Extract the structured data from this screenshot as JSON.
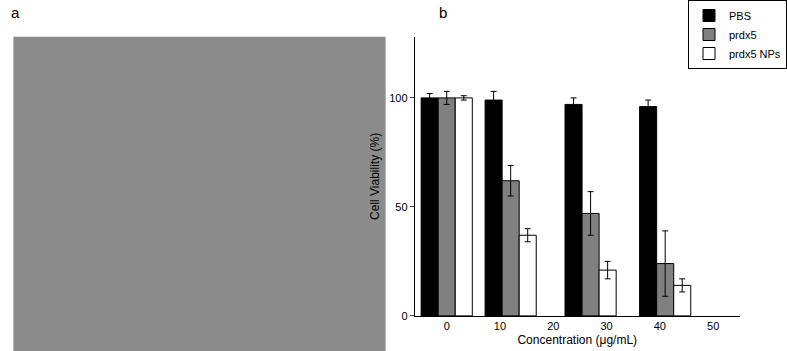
{
  "panel_labels": [
    "a",
    "b"
  ],
  "chart_data": {
    "type": "bar",
    "x_label": "Concentration (μg/mL)",
    "y_label": "Cell Viability (%)",
    "x": [
      0,
      12,
      27,
      41
    ],
    "xlim": [
      -6,
      55
    ],
    "xticks": [
      0,
      10,
      20,
      30,
      40,
      50
    ],
    "ylim": [
      0,
      128
    ],
    "yticks": [
      0,
      50,
      100
    ],
    "grid": false,
    "legend": "top right",
    "series": [
      {
        "name": "PBS",
        "color": "#000000",
        "values": [
          100,
          99,
          97,
          96
        ],
        "errors": [
          2,
          4,
          3,
          3
        ]
      },
      {
        "name": "prdx5",
        "color": "#808080",
        "values": [
          100,
          62,
          47,
          24
        ],
        "errors": [
          3,
          7,
          10,
          15
        ]
      },
      {
        "name": "prdx5 NPs",
        "color": "#ffffff",
        "values": [
          100,
          37,
          21,
          14
        ],
        "errors": [
          1,
          3,
          4,
          3
        ]
      }
    ]
  }
}
